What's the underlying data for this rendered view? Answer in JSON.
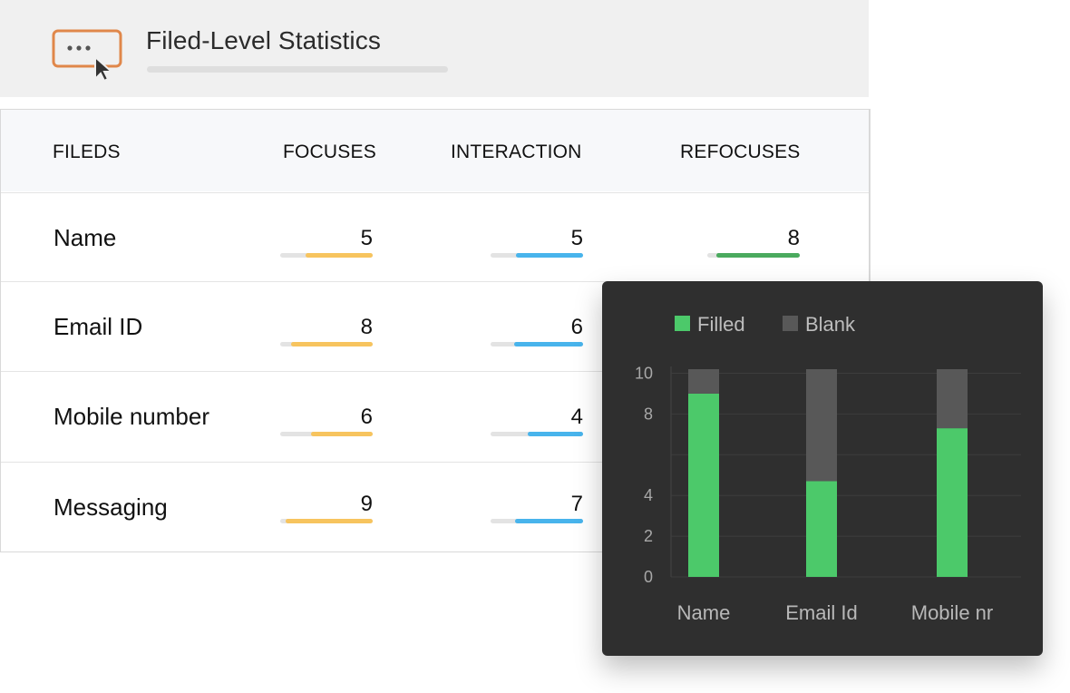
{
  "header": {
    "title": "Filed-Level Statistics",
    "icon": "cursor-click-icon",
    "icon_color": "#e0874a"
  },
  "table": {
    "columns": [
      "FILEDS",
      "FOCUSES",
      "INTERACTION",
      "REFOCUSES"
    ],
    "rows": [
      {
        "label": "Name",
        "focuses": "5",
        "interaction": "5",
        "refocuses": "8"
      },
      {
        "label": "Email ID",
        "focuses": "8",
        "interaction": "6",
        "refocuses": ""
      },
      {
        "label": "Mobile number",
        "focuses": "6",
        "interaction": "4",
        "refocuses": ""
      },
      {
        "label": "Messaging",
        "focuses": "9",
        "interaction": "7",
        "refocuses": ""
      }
    ],
    "bar_levels": {
      "focuses": [
        0.73,
        0.88,
        0.67,
        0.94
      ],
      "interaction": [
        0.73,
        0.75,
        0.6,
        0.74
      ],
      "refocuses": [
        0.9,
        null,
        null,
        null
      ]
    },
    "colors": {
      "focuses": "#f7c45e",
      "interaction": "#48b4ec",
      "refocuses": "#4aaa5e"
    }
  },
  "chart_data": {
    "type": "bar",
    "stacked": true,
    "categories": [
      "Name",
      "Email Id",
      "Mobile nr"
    ],
    "series": [
      {
        "name": "Filled",
        "color": "#4cc96a",
        "values": [
          9,
          4.7,
          7.3
        ]
      },
      {
        "name": "Blank",
        "color": "#585858",
        "values": [
          1.2,
          5.5,
          2.9
        ]
      }
    ],
    "yticks": [
      "0",
      "2",
      "4",
      "8",
      "10"
    ],
    "ylim": [
      0,
      10.2
    ],
    "legend_position": "top-left",
    "grid": true
  }
}
